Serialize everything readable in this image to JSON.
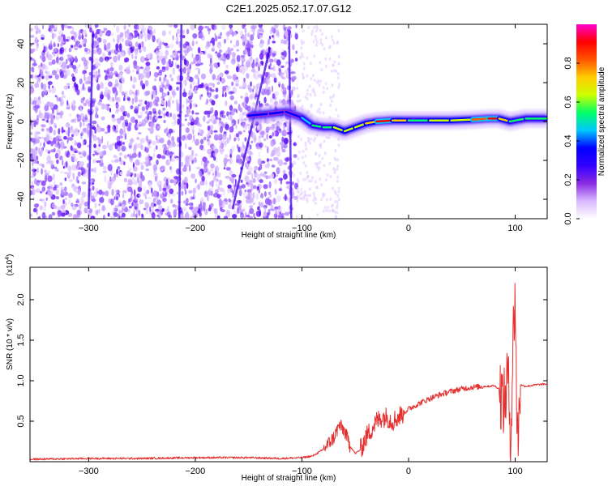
{
  "title": "C2E1.2025.052.17.07.G12",
  "chart_data": [
    {
      "type": "heatmap",
      "xlabel": "Height of straight line (km)",
      "ylabel": "Frequency (Hz)",
      "xlim": [
        -355,
        130
      ],
      "ylim": [
        -50,
        50
      ],
      "x_ticks": [
        -300,
        -200,
        -100,
        0,
        100
      ],
      "y_ticks": [
        -40,
        -20,
        0,
        20,
        40
      ],
      "colorbar": {
        "label": "Normalized spectral amplitude",
        "range": [
          0,
          1
        ],
        "ticks": [
          "0.0",
          "0.2",
          "0.4",
          "0.6",
          "0.8"
        ],
        "colors": [
          "#ffffff",
          "#d9b8ff",
          "#8a2be2",
          "#3300ff",
          "#0000ff",
          "#00c8ff",
          "#00ff66",
          "#ccff00",
          "#ffcc00",
          "#ff5500",
          "#ff0000",
          "#ff00cc"
        ]
      },
      "band_points": [
        {
          "x": -150,
          "y": 3,
          "amp": 0.3
        },
        {
          "x": -130,
          "y": 4,
          "amp": 0.35
        },
        {
          "x": -115,
          "y": 5,
          "amp": 0.4
        },
        {
          "x": -100,
          "y": 2,
          "amp": 0.4
        },
        {
          "x": -90,
          "y": -2,
          "amp": 0.45
        },
        {
          "x": -80,
          "y": -3,
          "amp": 0.55
        },
        {
          "x": -70,
          "y": -3,
          "amp": 0.6
        },
        {
          "x": -60,
          "y": -5,
          "amp": 0.7
        },
        {
          "x": -50,
          "y": -3,
          "amp": 0.65
        },
        {
          "x": -40,
          "y": -1,
          "amp": 0.6
        },
        {
          "x": -30,
          "y": 0,
          "amp": 0.85
        },
        {
          "x": -15,
          "y": 0.5,
          "amp": 0.9
        },
        {
          "x": 0,
          "y": 0.5,
          "amp": 0.55
        },
        {
          "x": 20,
          "y": 0.5,
          "amp": 0.6
        },
        {
          "x": 40,
          "y": 0.5,
          "amp": 0.65
        },
        {
          "x": 60,
          "y": 1,
          "amp": 0.7
        },
        {
          "x": 75,
          "y": 1.5,
          "amp": 0.85
        },
        {
          "x": 85,
          "y": 1.5,
          "amp": 0.9
        },
        {
          "x": 95,
          "y": 0,
          "amp": 0.55
        },
        {
          "x": 110,
          "y": 1.5,
          "amp": 0.5
        },
        {
          "x": 130,
          "y": 1.5,
          "amp": 0.5
        }
      ]
    },
    {
      "type": "line",
      "xlabel": "Height of straight line (km)",
      "ylabel": "SNR (10 * v/v)",
      "y_multiplier": "(x10^4)",
      "xlim": [
        -355,
        130
      ],
      "ylim": [
        0,
        2.4
      ],
      "x_ticks": [
        -300,
        -200,
        -100,
        0,
        100
      ],
      "y_ticks": [
        "0.5",
        "1.0",
        "1.5",
        "2.0"
      ],
      "series": [
        {
          "color": "#e53030",
          "x": [
            -355,
            -300,
            -250,
            -200,
            -150,
            -120,
            -100,
            -90,
            -80,
            -70,
            -65,
            -60,
            -55,
            -50,
            -45,
            -40,
            -35,
            -30,
            -25,
            -20,
            -15,
            -10,
            -5,
            0,
            10,
            20,
            30,
            40,
            50,
            60,
            70,
            75,
            80,
            85,
            90,
            93,
            96,
            98,
            100,
            102,
            105,
            110,
            120,
            130
          ],
          "y": [
            0.03,
            0.04,
            0.04,
            0.05,
            0.05,
            0.04,
            0.05,
            0.07,
            0.15,
            0.3,
            0.45,
            0.38,
            0.2,
            0.1,
            0.15,
            0.3,
            0.4,
            0.5,
            0.55,
            0.55,
            0.5,
            0.55,
            0.6,
            0.65,
            0.72,
            0.78,
            0.83,
            0.87,
            0.9,
            0.92,
            0.93,
            0.93,
            0.94,
            0.9,
            0.7,
            1.1,
            0.3,
            1.5,
            2.1,
            0.2,
            0.95,
            0.93,
            0.95,
            0.96
          ]
        }
      ]
    }
  ]
}
